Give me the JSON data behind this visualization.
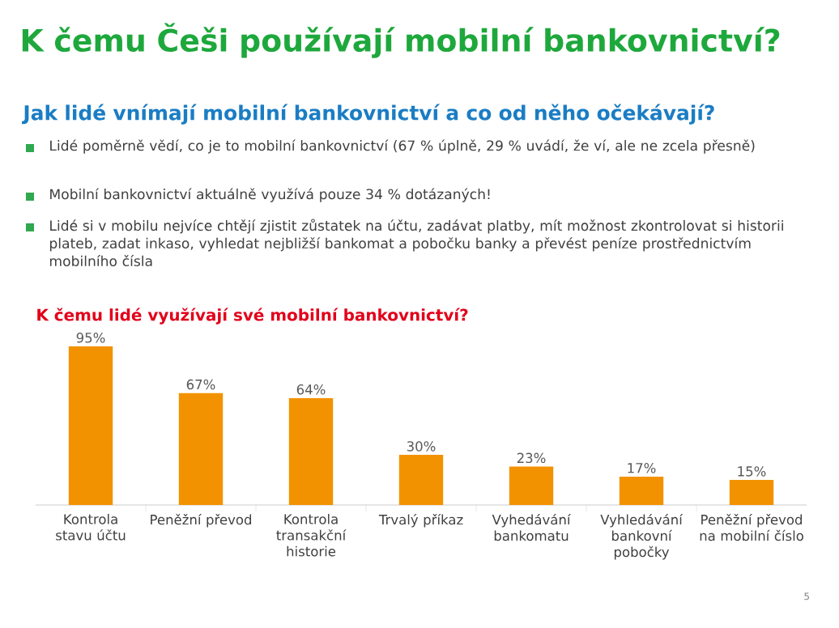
{
  "chart_data": {
    "type": "bar",
    "title": "K čemu lidé využívají své mobilní bankovnictví?",
    "categories": [
      "Kontrola stavu účtu",
      "Peněžní převod",
      "Kontrola transakční historie",
      "Trvalý příkaz",
      "Vyhedávání bankomatu",
      "Vyhledávání bankovní pobočky",
      "Peněžní převod na mobilní číslo"
    ],
    "values": [
      95,
      67,
      64,
      30,
      23,
      17,
      15
    ],
    "value_labels": [
      "95%",
      "67%",
      "64%",
      "30%",
      "23%",
      "17%",
      "15%"
    ],
    "color": "#f39200",
    "annotations": [
      "K čemu Češi používají mobilní bankovnictví?",
      "Jak lidé vnímají mobilní bankovnictví a co od něho očekávají?",
      "Lidé poměrně vědí, co je to mobilní bankovnictví (67 % úplně, 29 % uvádí, že ví, ale ne zcela přesně)",
      "Mobilní bankovnictví aktuálně využívá pouze 34 % dotázaných!",
      "Lidé si v mobilu nejvíce chtějí zjistit zůstatek na účtu, zadávat platby, mít možnost zkontrolovat si historii plateb, zadat inkaso, vyhledat nejbližší bankomat a pobočku banky a převést peníze prostřednictvím mobilního čísla",
      "5"
    ]
  }
}
